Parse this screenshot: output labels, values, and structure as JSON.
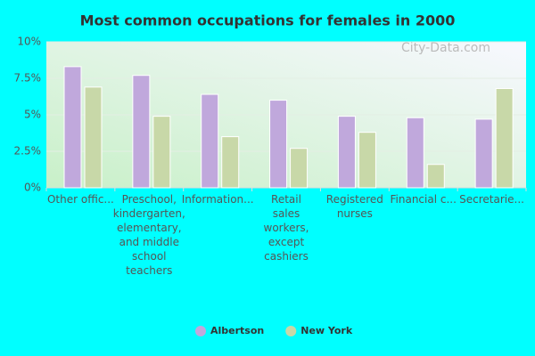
{
  "chart_data": {
    "type": "bar",
    "title": "Most common occupations for females in 2000",
    "watermark": "City-Data.com",
    "categories": [
      "Other offic...",
      "Preschool,\nkindergarten,\nelementary,\nand middle\nschool\nteachers",
      "Information...",
      "Retail\nsales\nworkers,\nexcept\ncashiers",
      "Registered\nnurses",
      "Financial c...",
      "Secretarie..."
    ],
    "series": [
      {
        "name": "Albertson",
        "color": "#c0a8dc",
        "values": [
          8.3,
          7.7,
          6.4,
          6.0,
          4.9,
          4.8,
          4.7
        ]
      },
      {
        "name": "New York",
        "color": "#c8d8a8",
        "values": [
          6.9,
          4.9,
          3.5,
          2.7,
          3.8,
          1.6,
          6.8
        ]
      }
    ],
    "ylim": [
      0,
      10
    ],
    "yticks": [
      {
        "value": 0,
        "label": "0%"
      },
      {
        "value": 2.5,
        "label": "2.5%"
      },
      {
        "value": 5,
        "label": "5%"
      },
      {
        "value": 7.5,
        "label": "7.5%"
      },
      {
        "value": 10,
        "label": "10%"
      }
    ],
    "grid": true
  }
}
